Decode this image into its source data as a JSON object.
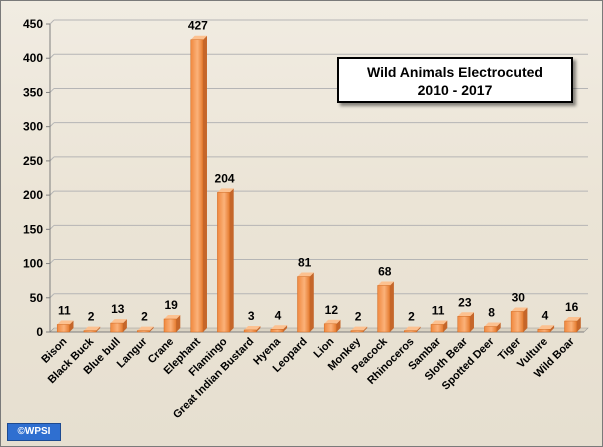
{
  "chart_data": {
    "type": "bar",
    "title": "Wild Animals Electrocuted",
    "subtitle": "2010 - 2017",
    "categories": [
      "Bison",
      "Black Buck",
      "Blue bull",
      "Langur",
      "Crane",
      "Elephant",
      "Flamingo",
      "Great Indian Bustard",
      "Hyena",
      "Leopard",
      "Lion",
      "Monkey",
      "Peacock",
      "Rhinoceros",
      "Sambar",
      "Sloth Bear",
      "Spotted Deer",
      "Tiger",
      "Vulture",
      "Wild Boar"
    ],
    "values": [
      11,
      2,
      13,
      2,
      19,
      427,
      204,
      3,
      4,
      81,
      12,
      2,
      68,
      2,
      11,
      23,
      8,
      30,
      4,
      16
    ],
    "ylim": [
      0,
      450
    ],
    "yticks": [
      0,
      50,
      100,
      150,
      200,
      250,
      300,
      350,
      400,
      450
    ],
    "grid": true,
    "bar_color": "#f79646",
    "data_labels": true
  },
  "credit": "©WPSI"
}
